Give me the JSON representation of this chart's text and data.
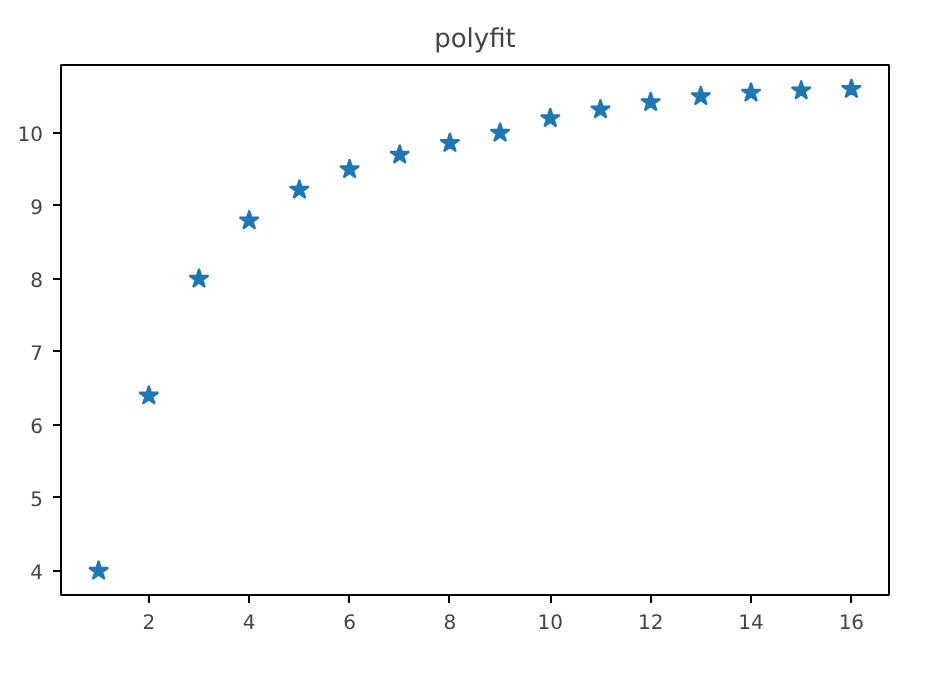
{
  "chart_data": {
    "type": "scatter",
    "title": "polyfit",
    "x": [
      1,
      2,
      3,
      4,
      5,
      6,
      7,
      8,
      9,
      10,
      11,
      12,
      13,
      14,
      15,
      16
    ],
    "series": [
      {
        "color": "#1f77b4",
        "values": [
          4,
          6.4,
          8,
          8.8,
          9.22,
          9.5,
          9.7,
          9.86,
          10,
          10.2,
          10.32,
          10.42,
          10.5,
          10.55,
          10.58,
          10.6
        ]
      }
    ],
    "marker": "star",
    "grid": false,
    "xlim": [
      0.25,
      16.75
    ],
    "xticks": [
      2,
      4,
      6,
      8,
      10,
      12,
      14,
      16
    ],
    "ylim": [
      3.67,
      10.93
    ],
    "yticks": [
      4,
      5,
      6,
      7,
      8,
      9,
      10
    ]
  }
}
